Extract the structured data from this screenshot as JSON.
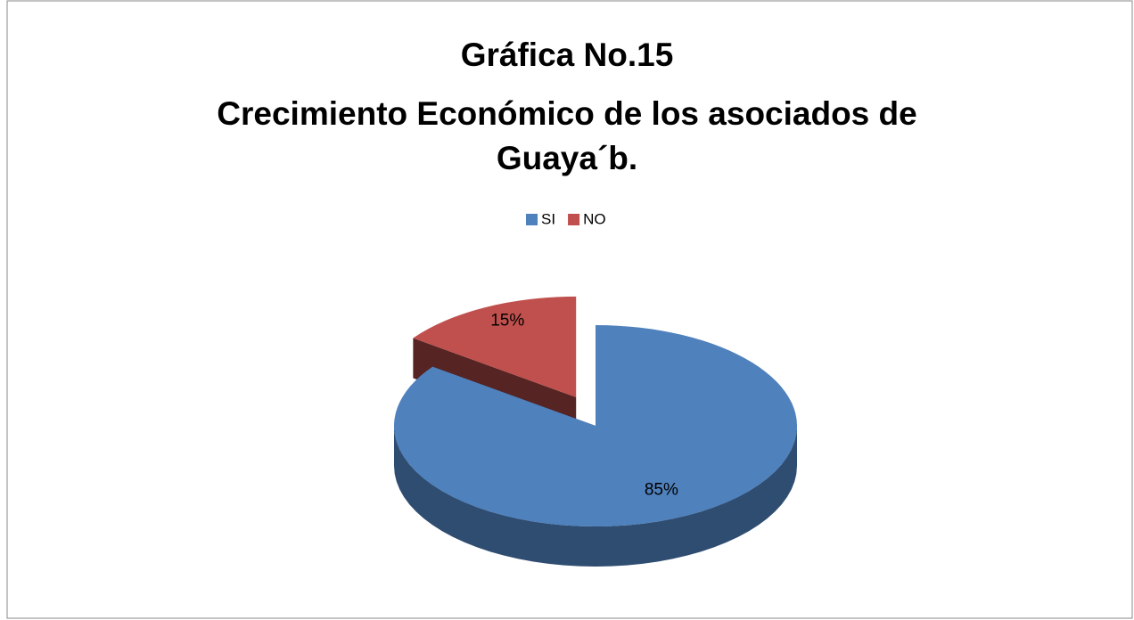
{
  "chart_data": {
    "type": "pie",
    "title": [
      "Gráfica No.15",
      "Crecimiento  Económico de los asociados de",
      "Guaya´b."
    ],
    "categories": [
      "SI",
      "NO"
    ],
    "values": [
      85,
      15
    ],
    "value_labels": [
      "85%",
      "15%"
    ],
    "colors": [
      "#4f81bd",
      "#c0504d"
    ],
    "legend": "top"
  }
}
